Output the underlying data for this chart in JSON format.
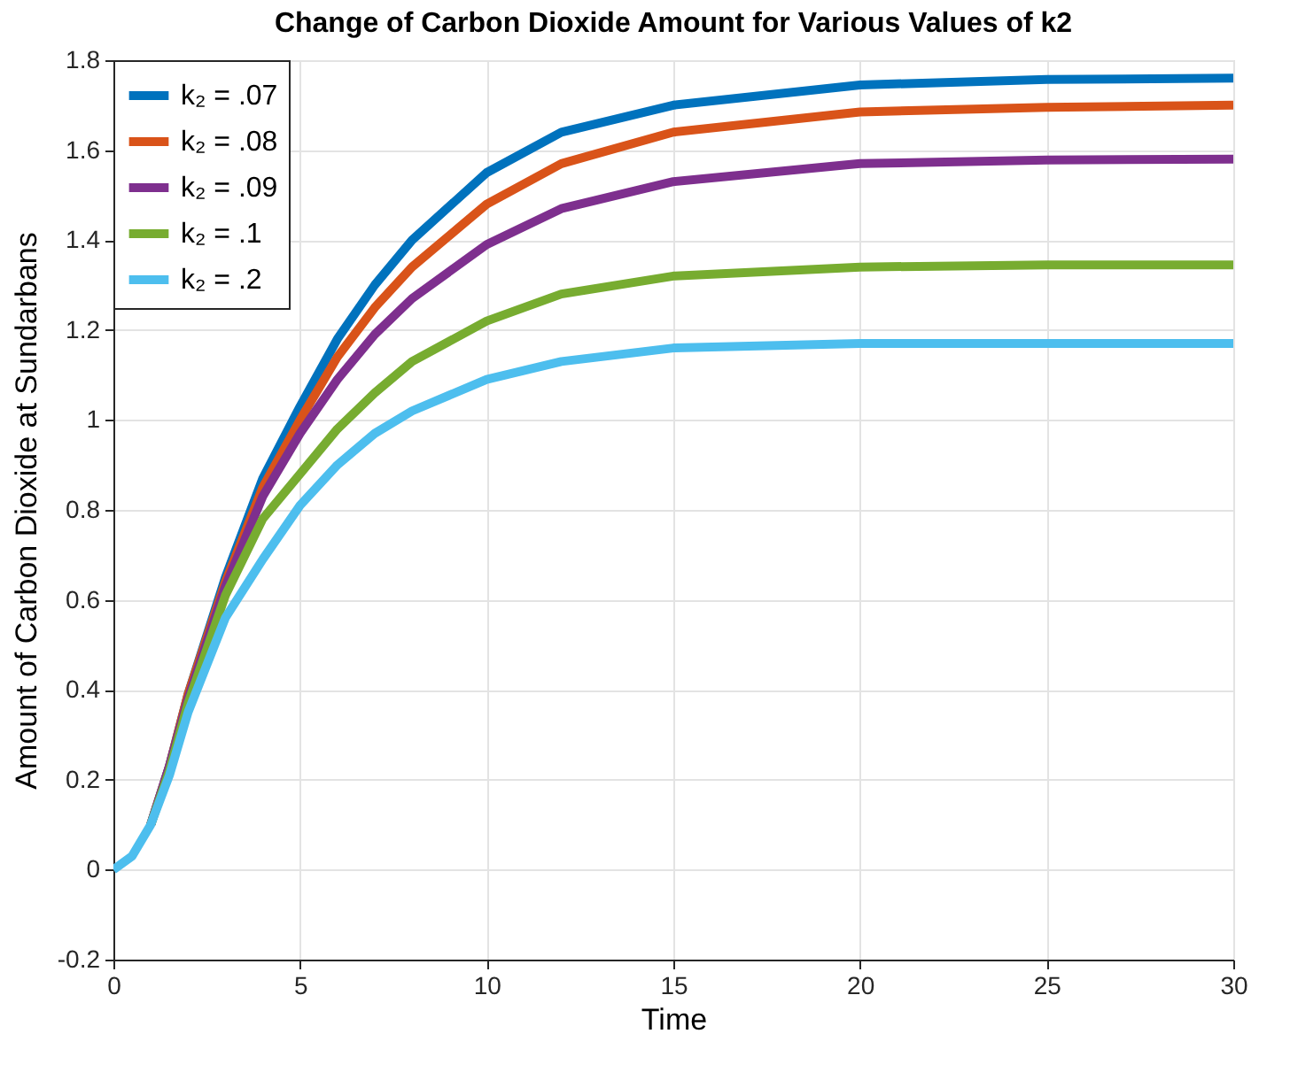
{
  "chart_data": {
    "type": "line",
    "title": "Change of Carbon Dioxide Amount for Various Values of k2",
    "xlabel": "Time",
    "ylabel": "Amount of Carbon Dioxide at Sundarbans",
    "x": [
      0,
      0.5,
      1,
      1.5,
      2,
      3,
      4,
      5,
      6,
      7,
      8,
      10,
      12,
      15,
      20,
      25,
      30
    ],
    "series": [
      {
        "name": "k₂ = .07",
        "color": "#0072bd",
        "values": [
          null,
          null,
          0.1,
          0.23,
          0.39,
          0.65,
          0.87,
          1.03,
          1.18,
          1.3,
          1.4,
          1.55,
          1.64,
          1.7,
          1.745,
          1.757,
          1.76
        ]
      },
      {
        "name": "k₂ = .08",
        "color": "#d95319",
        "values": [
          null,
          null,
          0.1,
          0.23,
          0.39,
          0.64,
          0.85,
          1.0,
          1.14,
          1.25,
          1.34,
          1.48,
          1.57,
          1.64,
          1.685,
          1.695,
          1.7
        ]
      },
      {
        "name": "k₂ = .09",
        "color": "#7e2f8e",
        "values": [
          null,
          null,
          0.1,
          0.23,
          0.38,
          0.63,
          0.83,
          0.97,
          1.09,
          1.19,
          1.27,
          1.39,
          1.47,
          1.53,
          1.57,
          1.578,
          1.58
        ]
      },
      {
        "name": "k₂ = .1",
        "color": "#77ac30",
        "values": [
          null,
          null,
          0.1,
          0.22,
          0.37,
          0.61,
          0.78,
          0.88,
          0.98,
          1.06,
          1.13,
          1.22,
          1.28,
          1.32,
          1.34,
          1.345,
          1.345
        ]
      },
      {
        "name": "k₂ = .2",
        "color": "#4dbeee",
        "values": [
          0,
          0.03,
          0.1,
          0.21,
          0.35,
          0.56,
          0.69,
          0.81,
          0.9,
          0.97,
          1.02,
          1.09,
          1.13,
          1.16,
          1.17,
          1.17,
          1.17
        ]
      }
    ],
    "xlim": [
      0,
      30
    ],
    "xticks": [
      0,
      5,
      10,
      15,
      20,
      25,
      30
    ],
    "ylim": [
      -0.2,
      1.8
    ],
    "yticks": [
      {
        "value": -0.2,
        "label": "-0.2"
      },
      {
        "value": 0,
        "label": "0"
      },
      0.2,
      0.4,
      0.6,
      0.8,
      {
        "value": 1,
        "label": "1"
      },
      1.2,
      1.4,
      1.6,
      1.8
    ],
    "grid": true,
    "legend": "top left",
    "marker": "none",
    "line_style": "solid"
  }
}
